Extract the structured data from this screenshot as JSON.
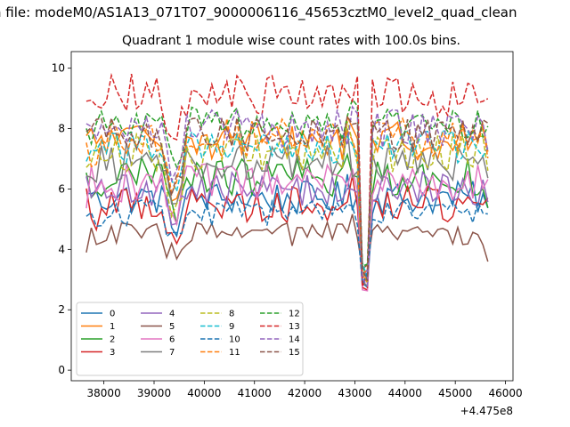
{
  "chart_data": {
    "type": "line",
    "suptitle": "n file: modeM0/AS1A13_071T07_9000006116_45653cztM0_level2_quad_clean",
    "title": "Quadrant 1 module wise count rates with 100.0s bins.",
    "xlabel": "",
    "ylabel": "",
    "x_offset_label": "+4.475e8",
    "xlim": [
      37350,
      46150
    ],
    "ylim": [
      -0.35,
      10.55
    ],
    "x_ticks": [
      38000,
      39000,
      40000,
      41000,
      42000,
      43000,
      44000,
      45000,
      46000
    ],
    "x_tick_labels": [
      "38000",
      "39000",
      "40000",
      "41000",
      "42000",
      "43000",
      "44000",
      "45000",
      "46000"
    ],
    "y_ticks": [
      0,
      2,
      4,
      6,
      8,
      10
    ],
    "y_tick_labels": [
      "0",
      "2",
      "4",
      "6",
      "8",
      "10"
    ],
    "x_start": 37650,
    "x_step": 100,
    "n_points": 81,
    "gap_window": [
      43000,
      43350
    ],
    "drop_end": 45750,
    "legend_position": "lower-left",
    "legend_columns": 4,
    "series": [
      {
        "name": "0",
        "color": "#1f77b4",
        "dash": "solid",
        "level": 5.7,
        "variation": 0.35,
        "dip": 4.6
      },
      {
        "name": "1",
        "color": "#ff7f0e",
        "dash": "solid",
        "level": 7.6,
        "variation": 0.4,
        "dip": 5.6
      },
      {
        "name": "2",
        "color": "#2ca02c",
        "dash": "solid",
        "level": 6.4,
        "variation": 0.4,
        "dip": 4.8
      },
      {
        "name": "3",
        "color": "#d62728",
        "dash": "solid",
        "level": 5.5,
        "variation": 0.4,
        "dip": 4.2
      },
      {
        "name": "4",
        "color": "#9467bd",
        "dash": "solid",
        "level": 6.0,
        "variation": 0.35,
        "dip": 4.8
      },
      {
        "name": "5",
        "color": "#8c564b",
        "dash": "solid",
        "level": 4.5,
        "variation": 0.25,
        "dip": 3.6
      },
      {
        "name": "6",
        "color": "#e377c2",
        "dash": "solid",
        "level": 6.2,
        "variation": 0.4,
        "dip": 4.6
      },
      {
        "name": "7",
        "color": "#7f7f7f",
        "dash": "solid",
        "level": 6.9,
        "variation": 0.4,
        "dip": 5.2
      },
      {
        "name": "8",
        "color": "#bcbd22",
        "dash": "dashed",
        "level": 7.2,
        "variation": 0.4,
        "dip": 5.0
      },
      {
        "name": "9",
        "color": "#17becf",
        "dash": "dashed",
        "level": 7.4,
        "variation": 0.35,
        "dip": 5.4
      },
      {
        "name": "10",
        "color": "#1f77b4",
        "dash": "dashed",
        "level": 5.2,
        "variation": 0.3,
        "dip": 4.3
      },
      {
        "name": "11",
        "color": "#ff7f0e",
        "dash": "dashed",
        "level": 7.7,
        "variation": 0.4,
        "dip": 5.6
      },
      {
        "name": "12",
        "color": "#2ca02c",
        "dash": "dashed",
        "level": 8.2,
        "variation": 0.35,
        "dip": 6.0
      },
      {
        "name": "13",
        "color": "#d62728",
        "dash": "dashed",
        "level": 9.1,
        "variation": 0.45,
        "dip": 6.8
      },
      {
        "name": "14",
        "color": "#9467bd",
        "dash": "dashed",
        "level": 8.0,
        "variation": 0.4,
        "dip": 5.8
      },
      {
        "name": "15",
        "color": "#8c564b",
        "dash": "dashed",
        "level": 7.8,
        "variation": 0.35,
        "dip": 5.6
      }
    ]
  }
}
